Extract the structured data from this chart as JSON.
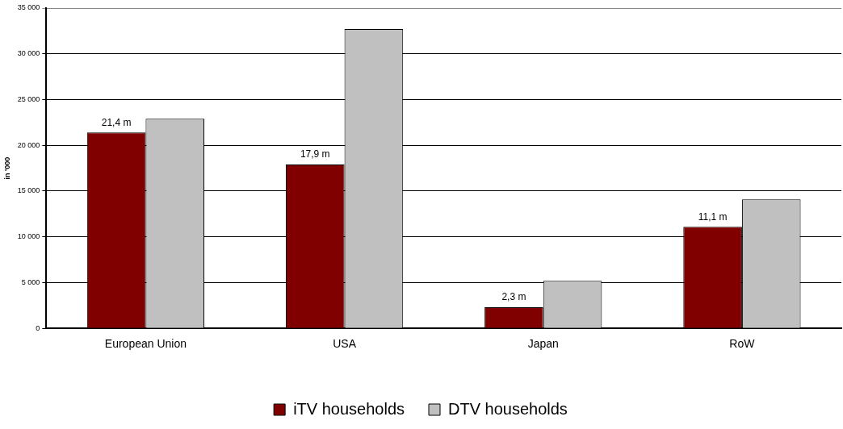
{
  "chart_data": {
    "type": "bar",
    "ylabel": "in '000",
    "categories": [
      "European Union",
      "USA",
      "Japan",
      "RoW"
    ],
    "series": [
      {
        "name": "iTV households",
        "color": "#800000",
        "values": [
          21400,
          17900,
          2300,
          11100
        ]
      },
      {
        "name": "DTV households",
        "color": "#c0c0c0",
        "values": [
          22900,
          32700,
          5200,
          14100
        ]
      }
    ],
    "annotations": [
      {
        "text": "21,4 m",
        "x": "European Union",
        "y": 21400
      },
      {
        "text": "17,9 m",
        "x": "USA",
        "y": 17900
      },
      {
        "text": "2,3 m",
        "x": "Japan",
        "y": 2300
      },
      {
        "text": "11,1 m",
        "x": "RoW",
        "y": 11100
      }
    ],
    "ylim": [
      0,
      35000
    ],
    "yticks": [
      {
        "value": 0,
        "label": "0"
      },
      {
        "value": 5000,
        "label": "5 000"
      },
      {
        "value": 10000,
        "label": "10 000"
      },
      {
        "value": 15000,
        "label": "15 000"
      },
      {
        "value": 20000,
        "label": "20 000"
      },
      {
        "value": 25000,
        "label": "25 000"
      },
      {
        "value": 30000,
        "label": "30 000"
      },
      {
        "value": 35000,
        "label": "35 000"
      }
    ],
    "grid": "y",
    "legend": "bottom"
  }
}
